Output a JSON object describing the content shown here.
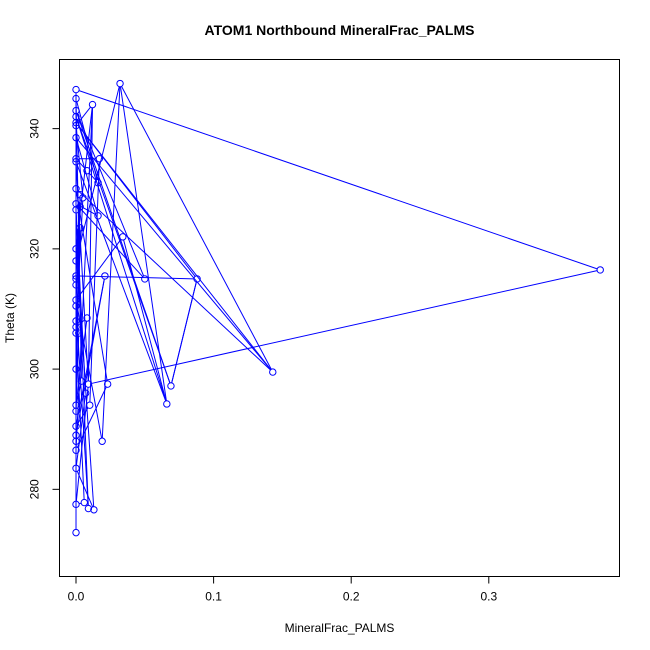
{
  "chart_data": {
    "type": "scatter",
    "title": "ATOM1 Northbound MineralFrac_PALMS",
    "xlabel": "MineralFrac_PALMS",
    "ylabel": "Theta (K)",
    "xlim": [
      -0.012,
      0.395
    ],
    "ylim": [
      265.5,
      351.5
    ],
    "xticks": [
      0.0,
      0.1,
      0.2,
      0.3
    ],
    "xtick_labels": [
      "0.0",
      "0.1",
      "0.2",
      "0.3"
    ],
    "yticks": [
      280,
      300,
      320,
      340
    ],
    "ytick_labels": [
      "280",
      "300",
      "320",
      "340"
    ],
    "grid": false,
    "legend": "none",
    "connected": true,
    "color": "#0000ff",
    "series": [
      {
        "points": [
          [
            0.0,
            346.5
          ],
          [
            0.0,
            345.0
          ],
          [
            0.0,
            343.0
          ],
          [
            0.0,
            342.0
          ],
          [
            0.0,
            341.0
          ],
          [
            0.0,
            340.5
          ],
          [
            0.0,
            338.5
          ],
          [
            0.0,
            335.0
          ],
          [
            0.0,
            334.5
          ],
          [
            0.0,
            330.0
          ],
          [
            0.0,
            327.5
          ],
          [
            0.0,
            326.5
          ],
          [
            0.0,
            320.0
          ],
          [
            0.0,
            318.0
          ],
          [
            0.0,
            315.5
          ],
          [
            0.0,
            315.0
          ],
          [
            0.0,
            314.0
          ],
          [
            0.0,
            311.5
          ],
          [
            0.0,
            310.5
          ],
          [
            0.0,
            308.0
          ],
          [
            0.0,
            307.0
          ],
          [
            0.0,
            306.0
          ],
          [
            0.0,
            300.0
          ],
          [
            0.0,
            294.0
          ],
          [
            0.0,
            293.0
          ],
          [
            0.0,
            290.5
          ],
          [
            0.0,
            289.0
          ],
          [
            0.0,
            288.0
          ],
          [
            0.0,
            286.5
          ],
          [
            0.0,
            283.5
          ],
          [
            0.0,
            277.5
          ],
          [
            0.0,
            272.8
          ],
          [
            0.002,
            306.0
          ],
          [
            0.003,
            329.0
          ],
          [
            0.003,
            327.0
          ],
          [
            0.003,
            323.5
          ],
          [
            0.004,
            298.0
          ],
          [
            0.005,
            328.5
          ],
          [
            0.006,
            277.8
          ],
          [
            0.007,
            296.0
          ],
          [
            0.008,
            308.5
          ],
          [
            0.008,
            333.0
          ],
          [
            0.009,
            297.5
          ],
          [
            0.009,
            276.8
          ],
          [
            0.01,
            294.0
          ],
          [
            0.012,
            344.0
          ],
          [
            0.013,
            276.6
          ],
          [
            0.016,
            325.5
          ],
          [
            0.016,
            331.0
          ],
          [
            0.017,
            335.0
          ],
          [
            0.019,
            288.0
          ],
          [
            0.021,
            315.5
          ],
          [
            0.023,
            297.5
          ],
          [
            0.032,
            347.5
          ],
          [
            0.034,
            322.0
          ],
          [
            0.05,
            315.0
          ],
          [
            0.066,
            294.2
          ],
          [
            0.069,
            297.2
          ],
          [
            0.088,
            315.0
          ],
          [
            0.143,
            299.5
          ],
          [
            0.381,
            316.5
          ]
        ],
        "path": [
          [
            0.0,
            272.8
          ],
          [
            0.0,
            300.0
          ],
          [
            0.003,
            323.5
          ],
          [
            0.0,
            306.0
          ],
          [
            0.005,
            328.5
          ],
          [
            0.0,
            340.5
          ],
          [
            0.012,
            344.0
          ],
          [
            0.009,
            297.5
          ],
          [
            0.0,
            277.5
          ],
          [
            0.006,
            277.8
          ],
          [
            0.0,
            307.0
          ],
          [
            0.008,
            308.5
          ],
          [
            0.0,
            294.0
          ],
          [
            0.004,
            298.0
          ],
          [
            0.0,
            345.0
          ],
          [
            0.016,
            331.0
          ],
          [
            0.008,
            333.0
          ],
          [
            0.0,
            335.0
          ],
          [
            0.017,
            335.0
          ],
          [
            0.01,
            294.0
          ],
          [
            0.0,
            290.5
          ],
          [
            0.021,
            315.5
          ],
          [
            0.0,
            289.0
          ],
          [
            0.0,
            346.5
          ],
          [
            0.381,
            316.5
          ],
          [
            0.009,
            297.5
          ],
          [
            0.0,
            334.5
          ],
          [
            0.066,
            294.2
          ],
          [
            0.0,
            342.0
          ],
          [
            0.069,
            297.2
          ],
          [
            0.088,
            315.0
          ],
          [
            0.069,
            297.2
          ],
          [
            0.0,
            343.0
          ],
          [
            0.05,
            315.0
          ],
          [
            0.0,
            327.5
          ],
          [
            0.016,
            325.5
          ],
          [
            0.0,
            338.5
          ],
          [
            0.143,
            299.5
          ],
          [
            0.0,
            341.0
          ],
          [
            0.088,
            315.0
          ],
          [
            0.0,
            315.5
          ],
          [
            0.003,
            327.0
          ],
          [
            0.0,
            318.0
          ],
          [
            0.032,
            347.5
          ],
          [
            0.066,
            294.2
          ],
          [
            0.034,
            322.0
          ],
          [
            0.0,
            311.5
          ],
          [
            0.019,
            288.0
          ],
          [
            0.032,
            347.5
          ],
          [
            0.143,
            299.5
          ],
          [
            0.0,
            330.0
          ],
          [
            0.023,
            297.5
          ],
          [
            0.0,
            286.5
          ],
          [
            0.012,
            344.0
          ],
          [
            0.0,
            320.0
          ],
          [
            0.013,
            276.6
          ],
          [
            0.0,
            283.5
          ],
          [
            0.007,
            296.0
          ],
          [
            0.0,
            326.5
          ],
          [
            0.009,
            276.8
          ],
          [
            0.0,
            310.5
          ],
          [
            0.003,
            329.0
          ],
          [
            0.0,
            293.0
          ],
          [
            0.002,
            306.0
          ],
          [
            0.0,
            308.0
          ],
          [
            0.0,
            288.0
          ],
          [
            0.0,
            314.0
          ],
          [
            0.0,
            315.0
          ]
        ]
      }
    ]
  }
}
